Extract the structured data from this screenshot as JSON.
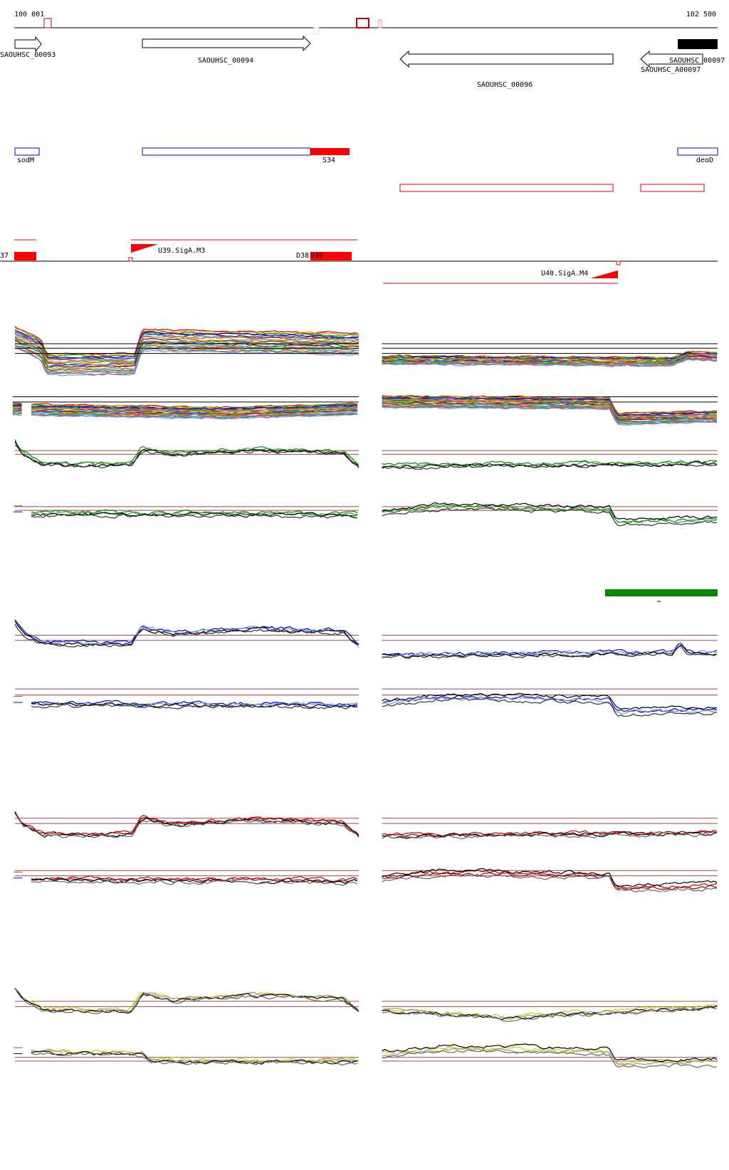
{
  "ruler": {
    "start": "100 001",
    "end": "102 500"
  },
  "genes": [
    {
      "label": "SAOUHSC_00093"
    },
    {
      "label": "SAOUHSC_00094"
    },
    {
      "label": "SAOUHSC_00096"
    },
    {
      "label": "SAOUHSC_00097"
    },
    {
      "label": "SAOUHSC_A00097"
    }
  ],
  "features": [
    {
      "label": "sodM"
    },
    {
      "label": "S34"
    },
    {
      "label": "deoD"
    }
  ],
  "sites": [
    {
      "label": "37"
    },
    {
      "label": "U39.SigA.M3"
    },
    {
      "label": "D38"
    },
    {
      "label": "D39"
    },
    {
      "label": "U40.SigA.M4"
    }
  ]
}
